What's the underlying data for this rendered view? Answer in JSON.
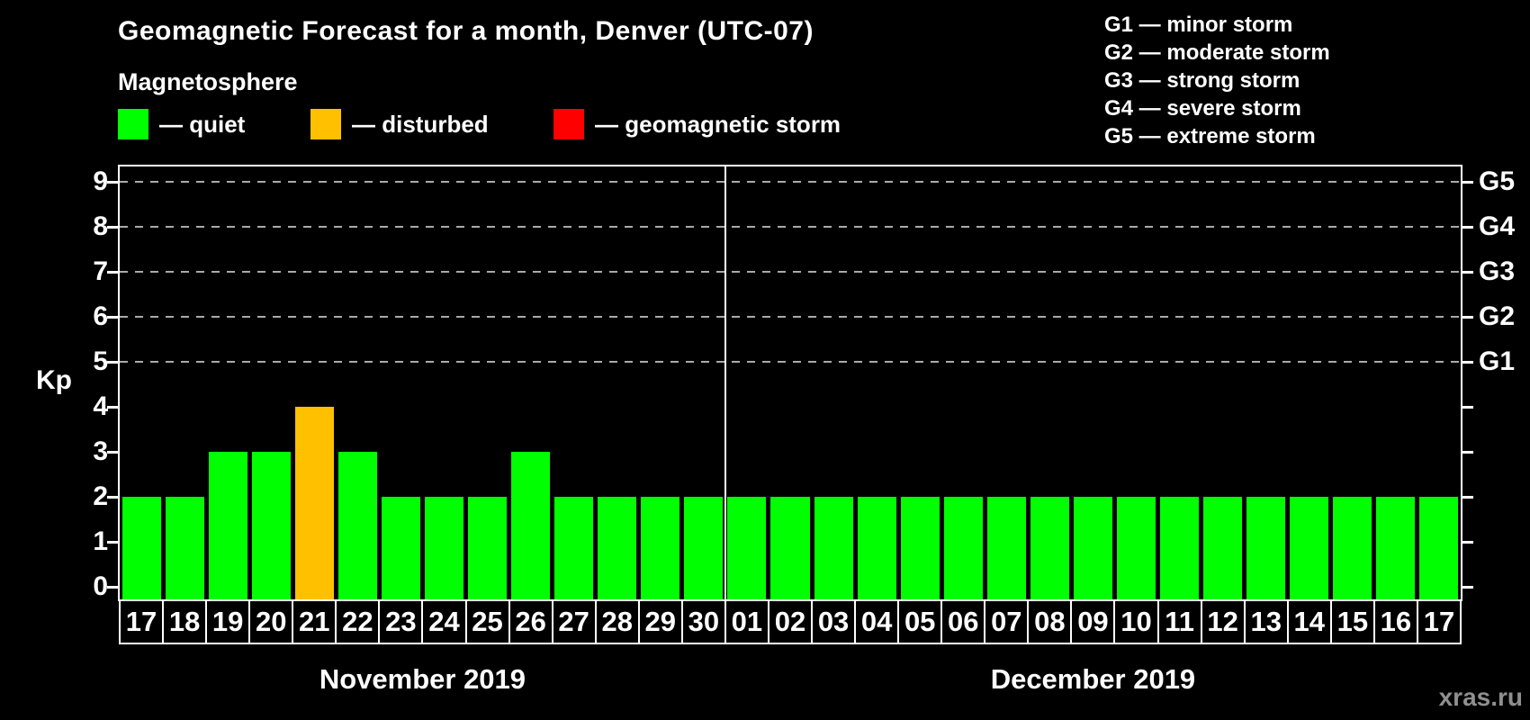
{
  "title": "Geomagnetic Forecast for a month, Denver (UTC-07)",
  "subtitle": "Magnetosphere",
  "legend": [
    {
      "key": "quiet",
      "label": "— quiet",
      "color": "#00ff00"
    },
    {
      "key": "disturbed",
      "label": "— disturbed",
      "color": "#ffc000"
    },
    {
      "key": "storm",
      "label": "— geomagnetic storm",
      "color": "#ff0000"
    }
  ],
  "g_scale_legend": [
    "G1 — minor storm",
    "G2 — moderate storm",
    "G3 — strong storm",
    "G4 — severe storm",
    "G5 — extreme storm"
  ],
  "axes": {
    "y_label": "Kp",
    "y_ticks": [
      0,
      1,
      2,
      3,
      4,
      5,
      6,
      7,
      8,
      9
    ],
    "right_axis": [
      {
        "label": "G1",
        "kp": 5
      },
      {
        "label": "G2",
        "kp": 6
      },
      {
        "label": "G3",
        "kp": 7
      },
      {
        "label": "G4",
        "kp": 8
      },
      {
        "label": "G5",
        "kp": 9
      }
    ]
  },
  "watermark": "xras.ru",
  "chart_data": {
    "type": "bar",
    "title": "Geomagnetic Forecast for a month, Denver (UTC-07)",
    "xlabel": "",
    "ylabel": "Kp",
    "ylim": [
      0,
      9
    ],
    "grid": "dashed horizontal lines at Kp 5-9 (storm levels G1-G5)",
    "gridlines_at_kp": [
      5,
      6,
      7,
      8,
      9
    ],
    "legend_position": "top-left",
    "status_colors": {
      "quiet": "#00ff00",
      "disturbed": "#ffc000",
      "storm": "#ff0000"
    },
    "months": [
      {
        "label": "November 2019",
        "days": [
          "17",
          "18",
          "19",
          "20",
          "21",
          "22",
          "23",
          "24",
          "25",
          "26",
          "27",
          "28",
          "29",
          "30"
        ],
        "kp": [
          2,
          2,
          3,
          3,
          4,
          3,
          2,
          2,
          2,
          3,
          2,
          2,
          2,
          2
        ],
        "status": [
          "quiet",
          "quiet",
          "quiet",
          "quiet",
          "disturbed",
          "quiet",
          "quiet",
          "quiet",
          "quiet",
          "quiet",
          "quiet",
          "quiet",
          "quiet",
          "quiet"
        ]
      },
      {
        "label": "December 2019",
        "days": [
          "01",
          "02",
          "03",
          "04",
          "05",
          "06",
          "07",
          "08",
          "09",
          "10",
          "11",
          "12",
          "13",
          "14",
          "15",
          "16",
          "17"
        ],
        "kp": [
          2,
          2,
          2,
          2,
          2,
          2,
          2,
          2,
          2,
          2,
          2,
          2,
          2,
          2,
          2,
          2,
          2
        ],
        "status": [
          "quiet",
          "quiet",
          "quiet",
          "quiet",
          "quiet",
          "quiet",
          "quiet",
          "quiet",
          "quiet",
          "quiet",
          "quiet",
          "quiet",
          "quiet",
          "quiet",
          "quiet",
          "quiet",
          "quiet"
        ]
      }
    ]
  }
}
